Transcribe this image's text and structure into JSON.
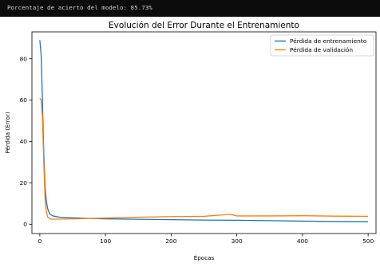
{
  "console": {
    "output_line": "Porcentaje de acierto del modelo: 85.73%"
  },
  "colors": {
    "console_bg": "#0c0c0c",
    "console_text": "#d8d8d8",
    "train_line": "#1f77b4",
    "val_line": "#ff7f0e"
  },
  "chart_data": {
    "type": "line",
    "title": "Evolución del Error Durante el Entrenamiento",
    "xlabel": "Épocas",
    "ylabel": "Pérdida (Error)",
    "xlim": [
      -12,
      512
    ],
    "ylim": [
      -4.5,
      93
    ],
    "xticks": [
      0,
      100,
      200,
      300,
      400,
      500
    ],
    "yticks": [
      0,
      20,
      40,
      60,
      80
    ],
    "grid": false,
    "legend_position": "top-right",
    "series": [
      {
        "name": "Pérdida de entrenamiento",
        "x": [
          0,
          2,
          4,
          6,
          8,
          10,
          12,
          15,
          20,
          30,
          50,
          100,
          150,
          200,
          250,
          300,
          350,
          400,
          450,
          500
        ],
        "y": [
          89,
          82,
          60,
          35,
          18,
          11,
          7.5,
          5,
          4,
          3.4,
          3.1,
          2.6,
          2.4,
          2.2,
          2.0,
          1.9,
          1.7,
          1.5,
          1.3,
          1.2
        ]
      },
      {
        "name": "Pérdida de validación",
        "x": [
          0,
          2,
          4,
          6,
          8,
          10,
          12,
          15,
          20,
          30,
          50,
          100,
          150,
          200,
          250,
          290,
          300,
          350,
          400,
          450,
          500
        ],
        "y": [
          61,
          60,
          52,
          30,
          12,
          6,
          3.5,
          2.6,
          2.4,
          2.5,
          2.6,
          3.0,
          3.4,
          3.7,
          3.8,
          4.8,
          4.0,
          4.0,
          4.1,
          3.9,
          3.8
        ]
      }
    ]
  }
}
